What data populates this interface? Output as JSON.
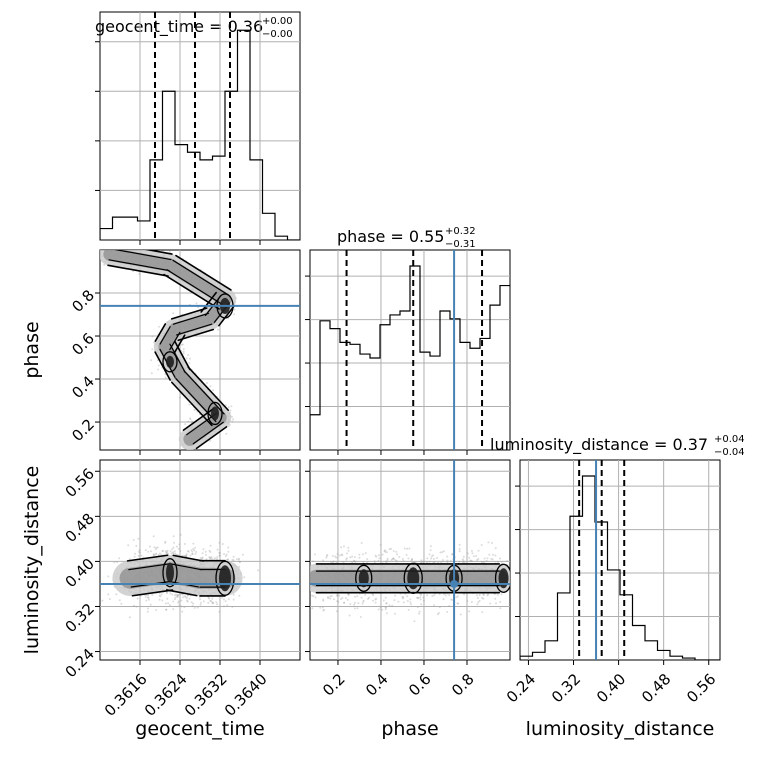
{
  "chart_data": {
    "type": "corner",
    "parameters": [
      "geocent_time",
      "phase",
      "luminosity_distance"
    ],
    "axis_labels": {
      "geocent_time": "geocent_time",
      "phase": "phase",
      "luminosity_distance": "luminosity_distance"
    },
    "ranges": {
      "geocent_time": [
        0.3608,
        0.3648
      ],
      "phase": [
        0.07,
        1.0
      ],
      "luminosity_distance": [
        0.225,
        0.58
      ]
    },
    "ticks": {
      "geocent_time": {
        "values": [
          0.3616,
          0.3624,
          0.3632,
          0.364
        ],
        "labels": [
          "0.3616",
          "0.3624",
          "0.3632",
          "0.3640"
        ]
      },
      "phase": {
        "values": [
          0.2,
          0.4,
          0.6,
          0.8
        ],
        "labels": [
          "0.2",
          "0.4",
          "0.6",
          "0.8"
        ]
      },
      "luminosity_distance": {
        "values": [
          0.24,
          0.32,
          0.4,
          0.48,
          0.56
        ],
        "labels": [
          "0.24",
          "0.32",
          "0.40",
          "0.48",
          "0.56"
        ]
      }
    },
    "titles": [
      {
        "param": "geocent_time",
        "text": "geocent_time = 0.36",
        "plus": "+0.00",
        "minus": "−0.00"
      },
      {
        "param": "phase",
        "text": "phase = 0.55",
        "plus": "+0.32",
        "minus": "−0.31"
      },
      {
        "param": "luminosity_distance",
        "text": "luminosity_distance = 0.37",
        "plus": "+0.04",
        "minus": "−0.04"
      }
    ],
    "truths": {
      "geocent_time": null,
      "phase": 0.74,
      "luminosity_distance": 0.36
    },
    "histograms": {
      "geocent_time": {
        "bins": [
          0.3608,
          0.3648
        ],
        "counts": [
          0.06,
          0.12,
          0.12,
          0.1,
          0.42,
          0.78,
          0.5,
          0.46,
          0.42,
          0.44,
          0.78,
          1.1,
          0.42,
          0.14,
          0.02,
          0.0
        ],
        "quantiles": [
          0.3619,
          0.3627,
          0.3634
        ]
      },
      "phase": {
        "bins": [
          0.07,
          1.0
        ],
        "counts": [
          0.18,
          0.66,
          0.62,
          0.55,
          0.54,
          0.49,
          0.47,
          0.64,
          0.69,
          0.71,
          0.94,
          0.5,
          0.48,
          0.71,
          0.67,
          0.55,
          0.52,
          0.57,
          0.74,
          0.84
        ],
        "quantiles": [
          0.24,
          0.55,
          0.87
        ]
      },
      "luminosity_distance": {
        "bins": [
          0.225,
          0.58
        ],
        "counts": [
          0.02,
          0.04,
          0.1,
          0.35,
          0.75,
          0.96,
          0.72,
          0.47,
          0.34,
          0.18,
          0.1,
          0.05,
          0.02,
          0.01,
          0.0,
          0.0
        ],
        "quantiles": [
          0.33,
          0.37,
          0.41
        ]
      }
    },
    "contour_panels": [
      {
        "x": "geocent_time",
        "y": "phase",
        "mode_ridge": [
          [
            0.361,
            0.98
          ],
          [
            0.3622,
            0.93
          ],
          [
            0.3633,
            0.77
          ],
          [
            0.363,
            0.68
          ],
          [
            0.3623,
            0.63
          ],
          [
            0.3621,
            0.55
          ],
          [
            0.3624,
            0.42
          ],
          [
            0.3628,
            0.32
          ],
          [
            0.3632,
            0.22
          ],
          [
            0.3626,
            0.12
          ]
        ]
      },
      {
        "x": "geocent_time",
        "y": "luminosity_distance",
        "mode_ridge": [
          [
            0.3614,
            0.37
          ],
          [
            0.3622,
            0.38
          ],
          [
            0.3628,
            0.37
          ],
          [
            0.3633,
            0.37
          ]
        ]
      },
      {
        "x": "phase",
        "y": "luminosity_distance",
        "mode_ridge": [
          [
            0.1,
            0.37
          ],
          [
            0.32,
            0.37
          ],
          [
            0.55,
            0.37
          ],
          [
            0.76,
            0.37
          ],
          [
            0.95,
            0.37
          ]
        ]
      }
    ]
  }
}
